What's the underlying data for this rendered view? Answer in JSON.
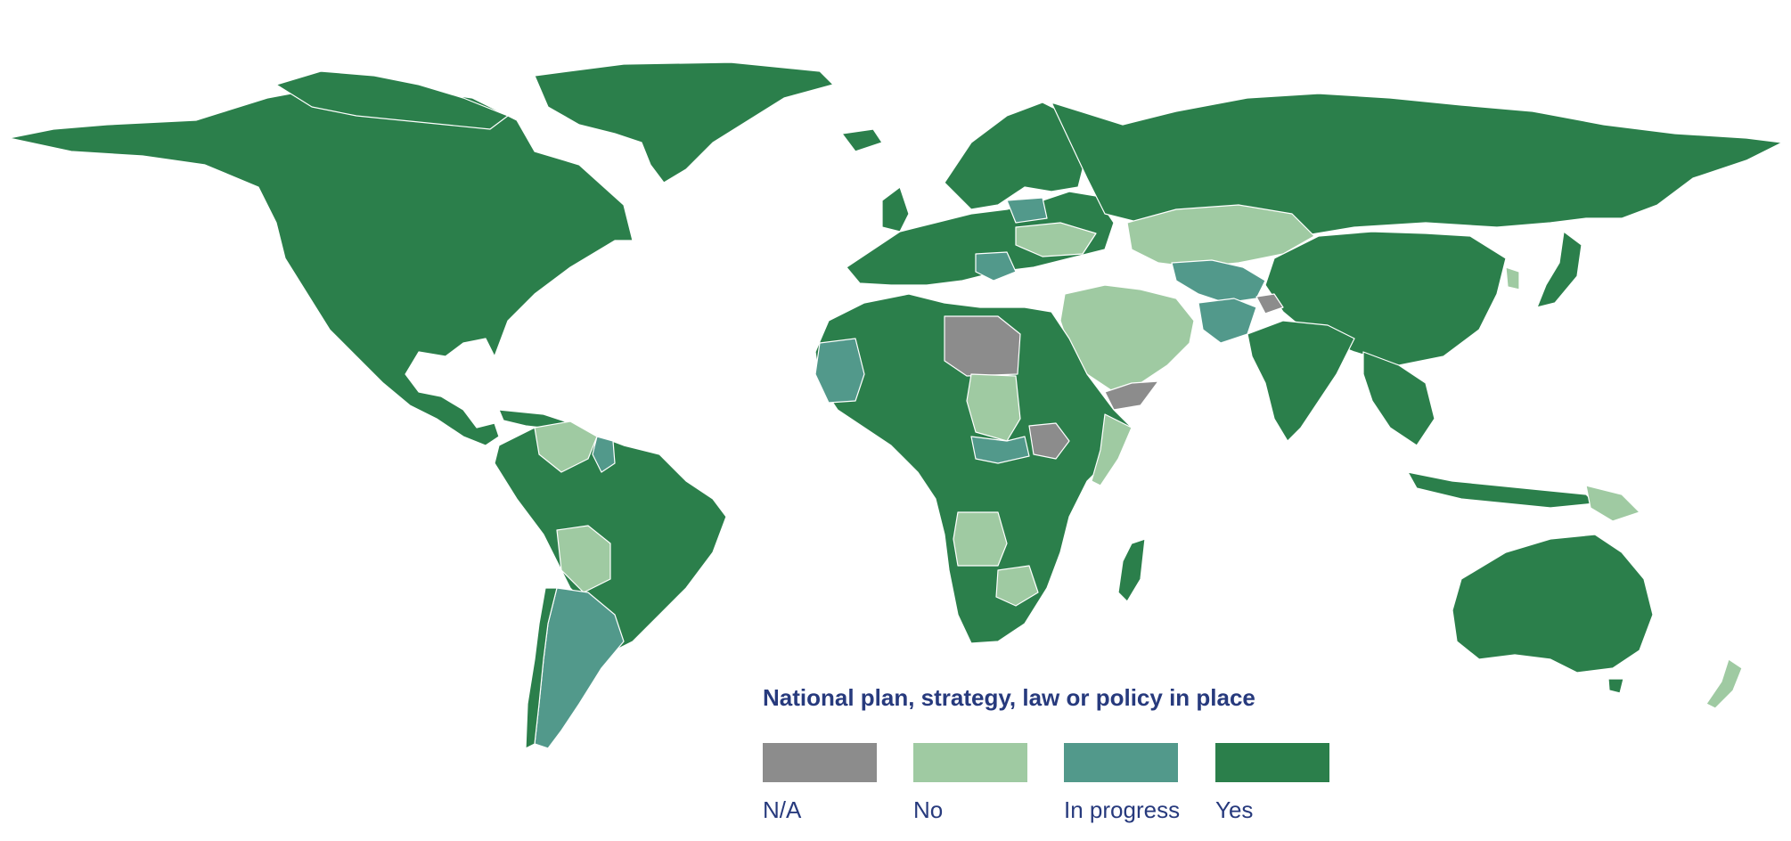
{
  "legend": {
    "title": "National plan, strategy, law or policy in place",
    "items": [
      {
        "label": "N/A",
        "color": "#8c8c8c"
      },
      {
        "label": "No",
        "color": "#9fcaa2"
      },
      {
        "label": "In progress",
        "color": "#52998b"
      },
      {
        "label": "Yes",
        "color": "#2b7f4b"
      }
    ]
  }
}
